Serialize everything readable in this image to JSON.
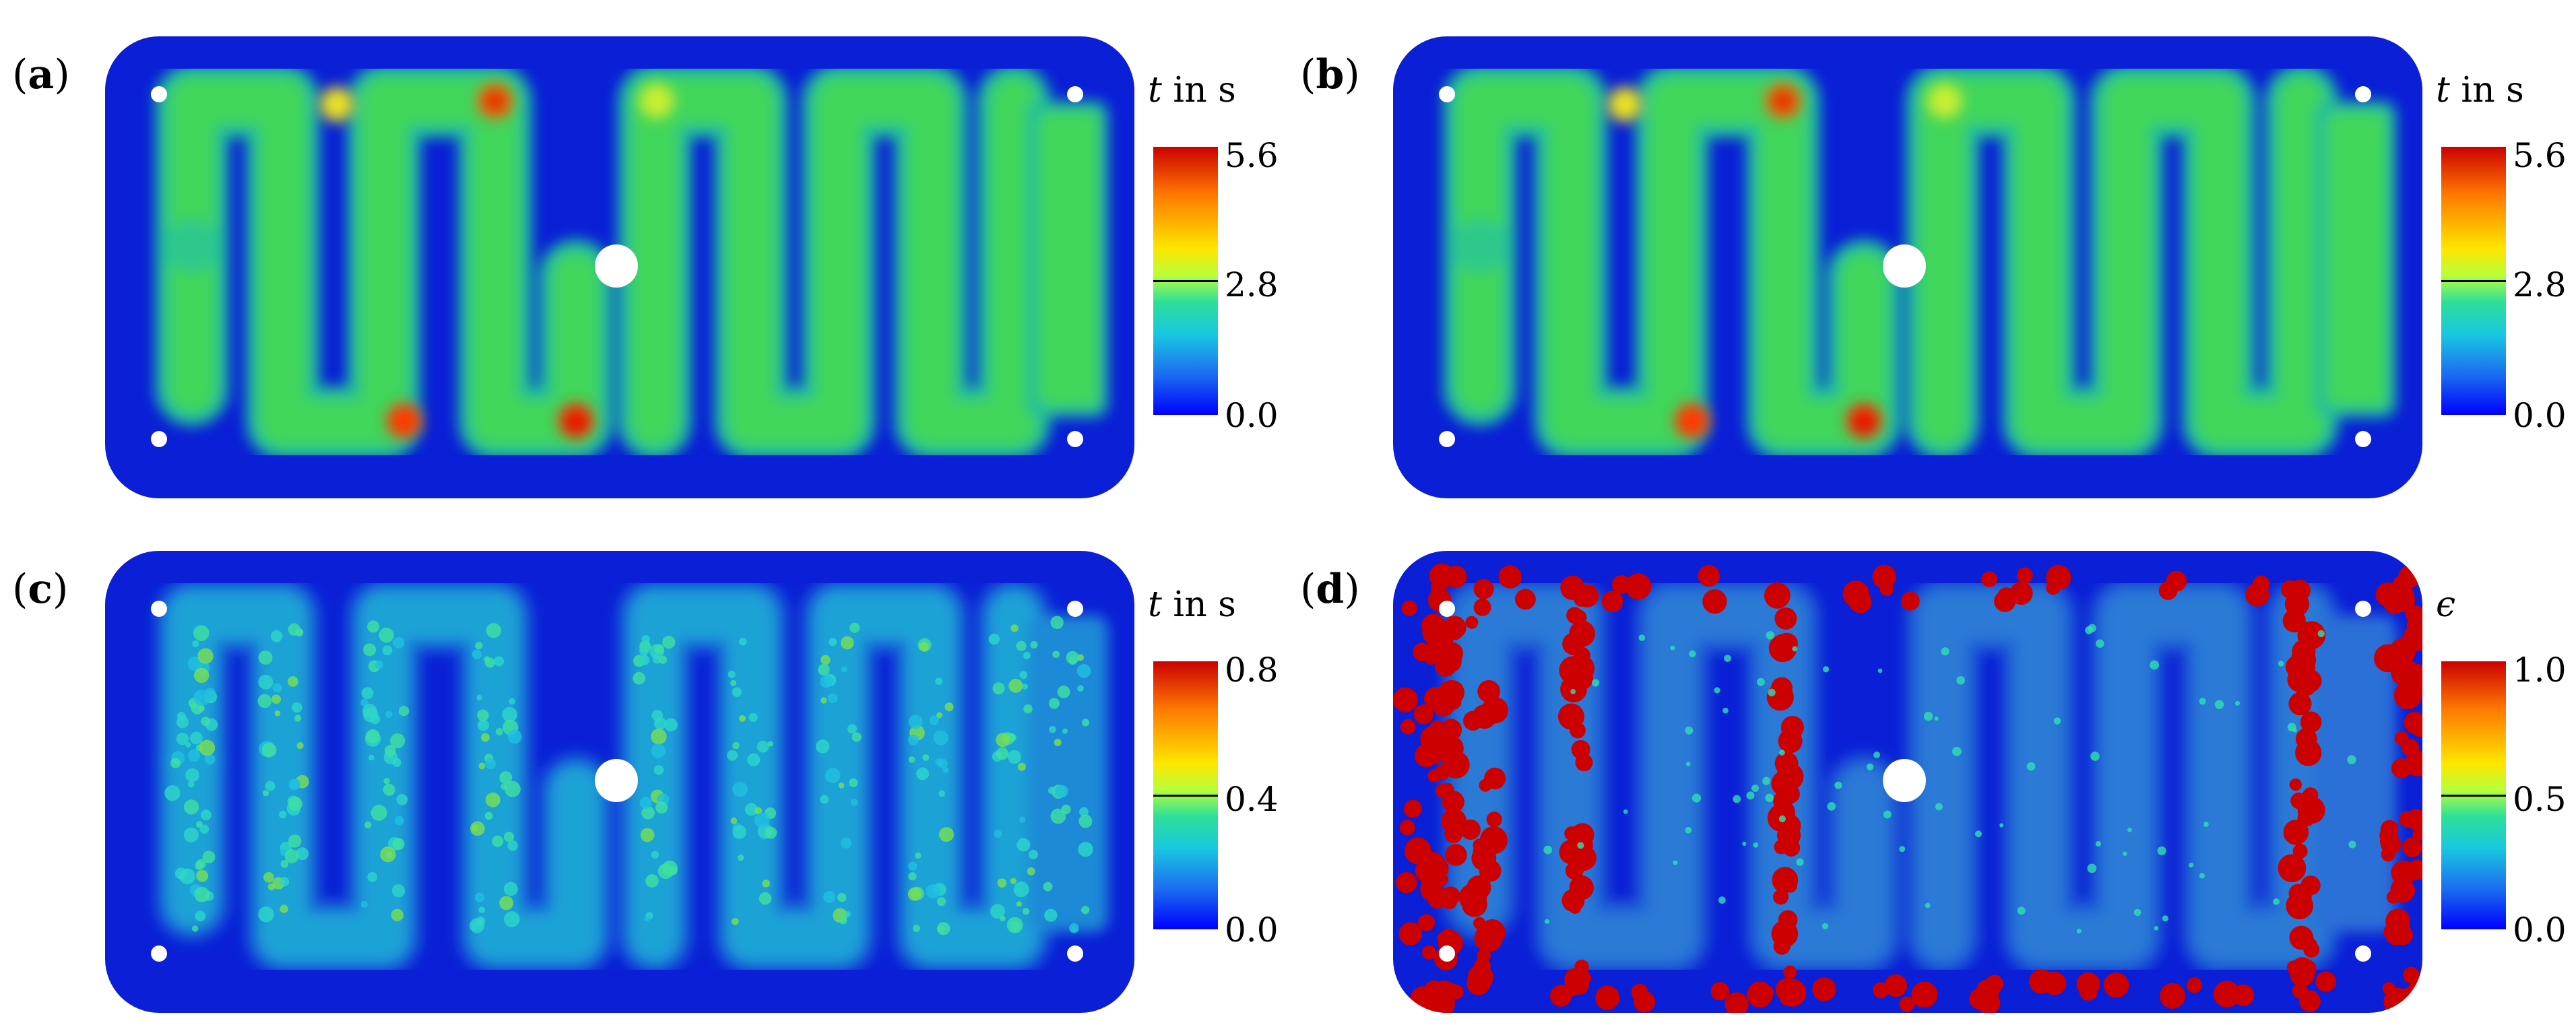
{
  "panels": [
    {
      "label_letter": "a",
      "colorbar": {
        "symbol": "t",
        "unit_text": " in s",
        "max": "5.6",
        "mid": "2.8",
        "min": "0.0"
      },
      "variant": "full"
    },
    {
      "label_letter": "b",
      "colorbar": {
        "symbol": "t",
        "unit_text": " in s",
        "max": "5.6",
        "mid": "2.8",
        "min": "0.0"
      },
      "variant": "full"
    },
    {
      "label_letter": "c",
      "colorbar": {
        "symbol": "t",
        "unit_text": " in s",
        "max": "0.8",
        "mid": "0.4",
        "min": "0.0"
      },
      "variant": "noise"
    },
    {
      "label_letter": "d",
      "colorbar": {
        "symbol": "ϵ",
        "unit_text": "",
        "max": "1.0",
        "mid": "0.5",
        "min": "0.0"
      },
      "variant": "error"
    }
  ],
  "colors": {
    "background_blue": "#0a1fd6",
    "channel_green": "#3fd65a",
    "hot_red": "#cc0000",
    "noise_cyan": "#2ab8d8",
    "hole_white": "#ffffff"
  }
}
